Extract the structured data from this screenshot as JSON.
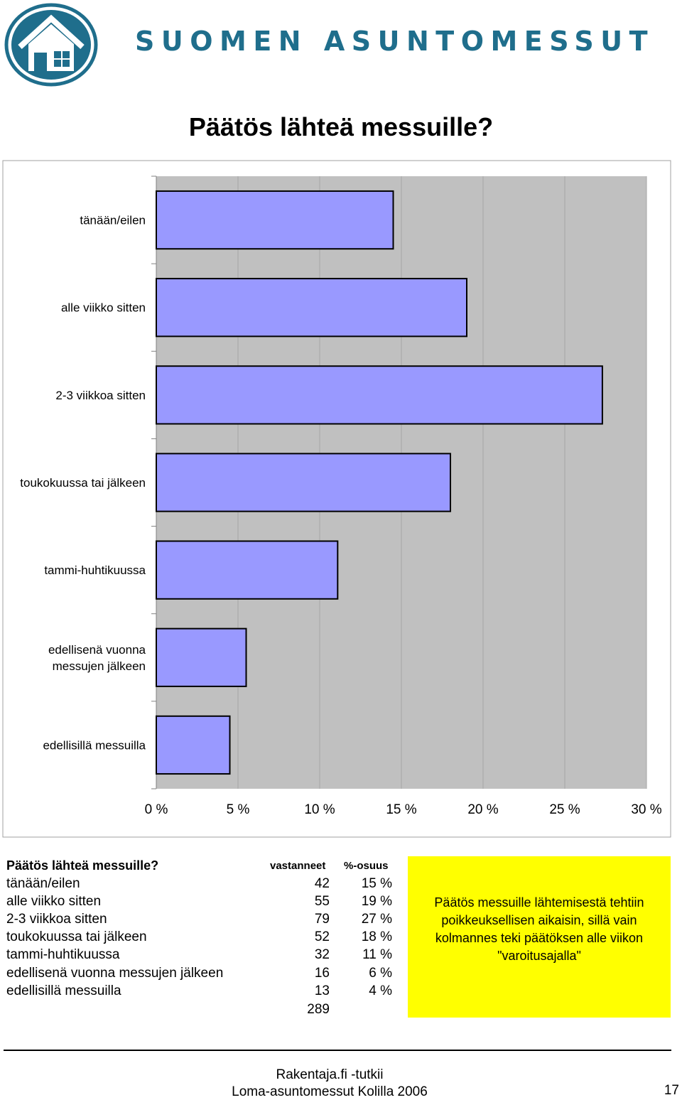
{
  "header": {
    "brand": "SUOMEN ASUNTOMESSUT"
  },
  "title": "Päätös lähteä messuille?",
  "chart_data": {
    "type": "bar",
    "orientation": "horizontal",
    "title": "",
    "xlabel": "",
    "ylabel": "",
    "categories": [
      "tänään/eilen",
      "alle viikko sitten",
      "2-3 viikkoa sitten",
      "toukokuussa tai jälkeen",
      "tammi-huhtikuussa",
      "edellisenä vuonna messujen jälkeen",
      "edellisillä messuilla"
    ],
    "category_lines": [
      [
        "tänään/eilen"
      ],
      [
        "alle viikko sitten"
      ],
      [
        "2-3 viikkoa sitten"
      ],
      [
        "toukokuussa tai jälkeen"
      ],
      [
        "tammi-huhtikuussa"
      ],
      [
        "edellisenä vuonna",
        "messujen jälkeen"
      ],
      [
        "edellisillä messuilla"
      ]
    ],
    "values": [
      14.5,
      19.0,
      27.3,
      18.0,
      11.1,
      5.5,
      4.5
    ],
    "xlim": [
      0,
      30
    ],
    "xticks": [
      "0 %",
      "5 %",
      "10 %",
      "15 %",
      "20 %",
      "25 %",
      "30 %"
    ],
    "grid": true,
    "bar_color": "#9999ff",
    "plot_bg": "#c0c0c0"
  },
  "table": {
    "title": "Päätös lähteä messuille?",
    "col_count": "vastanneet",
    "col_share": "%-osuus",
    "rows": [
      {
        "label": "tänään/eilen",
        "count": "42",
        "share": "15 %"
      },
      {
        "label": "alle viikko sitten",
        "count": "55",
        "share": "19 %"
      },
      {
        "label": "2-3 viikkoa sitten",
        "count": "79",
        "share": "27 %"
      },
      {
        "label": "toukokuussa tai jälkeen",
        "count": "52",
        "share": "18 %"
      },
      {
        "label": "tammi-huhtikuussa",
        "count": "32",
        "share": "11 %"
      },
      {
        "label": "edellisenä vuonna messujen jälkeen",
        "count": "16",
        "share": "6 %"
      },
      {
        "label": "edellisillä messuilla",
        "count": "13",
        "share": "4 %"
      }
    ],
    "total": "289"
  },
  "note": "Päätös messuille lähtemisestä tehtiin\npoikkeuksellisen aikaisin, sillä vain\nkolmannes teki päätöksen alle viikon\n\"varoitusajalla\"",
  "footer": {
    "line1": "Rakentaja.fi -tutkii",
    "line2": "Loma-asuntomessut Kolilla 2006",
    "page": "17"
  }
}
